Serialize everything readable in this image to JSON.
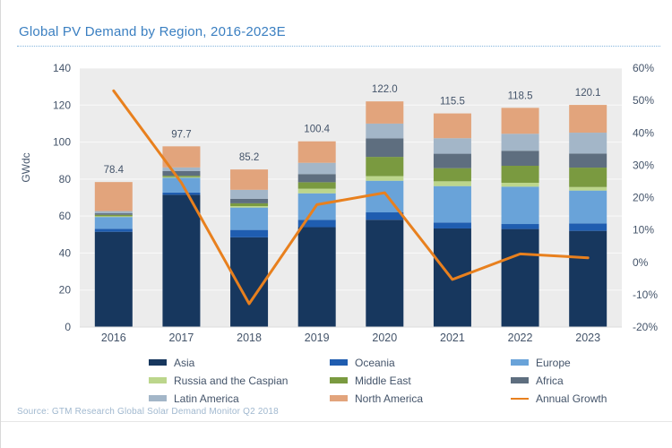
{
  "title": "Global PV Demand by Region, 2016-2023E",
  "source_note": "Source: GTM Research Global Solar Demand Monitor Q2 2018",
  "colors": {
    "title_text": "#3a7fc1",
    "axis_text": "#44546a",
    "plot_background": "#ececec",
    "gridline": "#f5f5f5",
    "title_underline": "#84b4dd",
    "source_text": "#a0b8cf",
    "growth_line": "#e8801e"
  },
  "chart_data": {
    "type": "bar",
    "subtype": "stacked-column-with-growth-line",
    "title": "Global PV Demand by Region, 2016-2023E",
    "categories": [
      "2016",
      "2017",
      "2018",
      "2019",
      "2020",
      "2021",
      "2022",
      "2023"
    ],
    "series": [
      {
        "name": "Asia",
        "color": "#17375e",
        "values": [
          51.5,
          71.5,
          48.5,
          54.0,
          58.0,
          53.3,
          53.0,
          52.0
        ]
      },
      {
        "name": "Oceania",
        "color": "#1f5db0",
        "values": [
          1.6,
          1.2,
          4.0,
          4.0,
          4.0,
          3.2,
          2.7,
          4.0
        ]
      },
      {
        "name": "Europe",
        "color": "#69a3d9",
        "values": [
          6.4,
          8.0,
          12.1,
          14.3,
          17.1,
          19.7,
          20.2,
          17.8
        ]
      },
      {
        "name": "Russia and the Caspian",
        "color": "#bcd68c",
        "values": [
          0.4,
          0.4,
          0.8,
          2.5,
          2.5,
          2.6,
          2.1,
          1.9
        ]
      },
      {
        "name": "Middle East",
        "color": "#7a9a40",
        "values": [
          0.8,
          0.7,
          1.5,
          3.5,
          10.4,
          7.1,
          9.2,
          10.5
        ]
      },
      {
        "name": "Africa",
        "color": "#5e6e7f",
        "values": [
          0.8,
          2.5,
          2.4,
          4.4,
          10.0,
          7.8,
          8.1,
          7.6
        ]
      },
      {
        "name": "Latin America",
        "color": "#a3b6c8",
        "values": [
          1.2,
          2.0,
          4.9,
          6.1,
          8.0,
          8.4,
          9.2,
          11.3
        ]
      },
      {
        "name": "North America",
        "color": "#e2a47c",
        "values": [
          15.7,
          11.4,
          11.0,
          11.6,
          12.0,
          13.4,
          14.0,
          15.0
        ]
      }
    ],
    "totals_labels": [
      "78.4",
      "97.7",
      "85.2",
      "100.4",
      "122.0",
      "115.5",
      "118.5",
      "120.1"
    ],
    "line_series": {
      "name": "Annual Growth",
      "color": "#e8801e",
      "values_percent": [
        53.0,
        24.6,
        -12.8,
        17.8,
        21.5,
        -5.3,
        2.6,
        1.4
      ]
    },
    "left_axis": {
      "label": "GWdc",
      "min": 0,
      "max": 140,
      "step": 20,
      "ticks": [
        "0",
        "20",
        "40",
        "60",
        "80",
        "100",
        "120",
        "140"
      ]
    },
    "right_axis": {
      "min": -20,
      "max": 60,
      "step": 10,
      "ticks": [
        "-20%",
        "-10%",
        "0%",
        "10%",
        "20%",
        "30%",
        "40%",
        "50%",
        "60%"
      ]
    },
    "legend_position": "bottom",
    "grid": "horizontal-subtle"
  },
  "legend": {
    "items": [
      {
        "label": "Asia",
        "swatch": "box",
        "color": "#17375e"
      },
      {
        "label": "Oceania",
        "swatch": "box",
        "color": "#1f5db0"
      },
      {
        "label": "Europe",
        "swatch": "box",
        "color": "#69a3d9"
      },
      {
        "label": "Russia and the Caspian",
        "swatch": "box",
        "color": "#bcd68c"
      },
      {
        "label": "Middle East",
        "swatch": "box",
        "color": "#7a9a40"
      },
      {
        "label": "Africa",
        "swatch": "box",
        "color": "#5e6e7f"
      },
      {
        "label": "Latin America",
        "swatch": "box",
        "color": "#a3b6c8"
      },
      {
        "label": "North America",
        "swatch": "box",
        "color": "#e2a47c"
      },
      {
        "label": "Annual Growth",
        "swatch": "line",
        "color": "#e8801e"
      }
    ]
  }
}
